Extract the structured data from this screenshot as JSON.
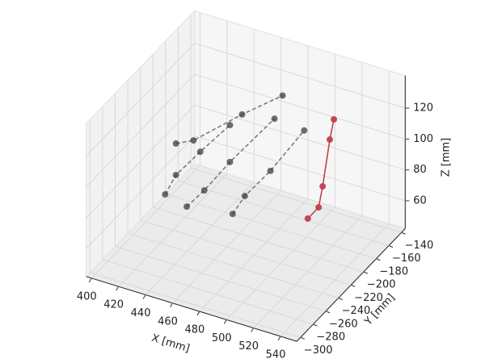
{
  "chart_data": {
    "type": "scatter3d",
    "xlabel": "X [mm]",
    "ylabel": "Y [mm]",
    "zlabel": "Z [mm]",
    "xlim": [
      396,
      552
    ],
    "ylim": [
      -306,
      -134
    ],
    "zlim": [
      42,
      141
    ],
    "xticks": [
      400,
      420,
      440,
      460,
      480,
      500,
      520,
      540
    ],
    "yticks": [
      {
        "value": -300,
        "label": "−300"
      },
      {
        "value": -280,
        "label": "−280"
      },
      {
        "value": -260,
        "label": "−260"
      },
      {
        "value": -240,
        "label": "−240"
      },
      {
        "value": -220,
        "label": "−220"
      },
      {
        "value": -200,
        "label": "−200"
      },
      {
        "value": -180,
        "label": "−180"
      },
      {
        "value": -160,
        "label": "−160"
      },
      {
        "value": -140,
        "label": "−140"
      }
    ],
    "zticks": [
      60,
      80,
      100,
      120
    ],
    "grid": true,
    "series": [
      {
        "color": "#333333",
        "linestyle": "dashed",
        "x": [
          405,
          413,
          431,
          453
        ],
        "y": [
          -200,
          -200,
          -200,
          -200
        ],
        "z": [
          52.6,
          67.3,
          87.2,
          110.4
        ]
      },
      {
        "color": "#333333",
        "linestyle": "dashed",
        "x": [
          413,
          426,
          462,
          492
        ],
        "y": [
          -200,
          -200,
          -200,
          -200
        ],
        "z": [
          87.7,
          93.2,
          119.7,
          140
        ]
      },
      {
        "color": "#333333",
        "linestyle": "dashed",
        "x": [
          421,
          434,
          453,
          486
        ],
        "y": [
          -200,
          -200,
          -200,
          -200
        ],
        "z": [
          49,
          63,
          86.5,
          123.4
        ]
      },
      {
        "color": "#333333",
        "linestyle": "dashed",
        "x": [
          455,
          464,
          483,
          508
        ],
        "y": [
          -200,
          -200,
          -200,
          -200
        ],
        "z": [
          53.4,
          67.4,
          88.8,
          121.7
        ]
      },
      {
        "color": "#c0404e",
        "linestyle": "solid",
        "x": [
          492,
          500,
          503,
          508.3,
          511.3
        ],
        "y": [
          -160,
          -160,
          -160,
          -160,
          -160
        ],
        "z": [
          43.4,
          52.8,
          67.2,
          98.9,
          112.8
        ]
      }
    ]
  }
}
